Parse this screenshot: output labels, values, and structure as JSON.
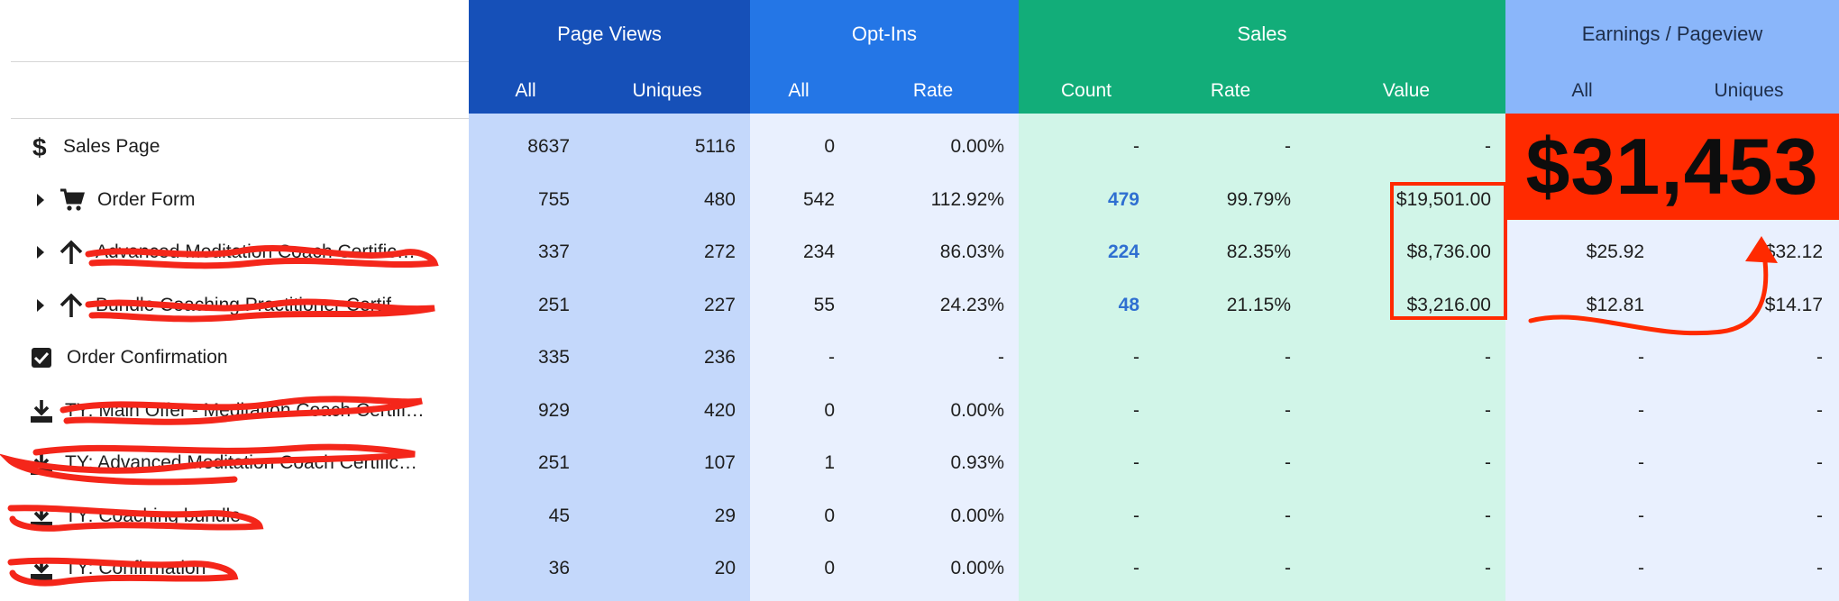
{
  "header": {
    "groups": [
      {
        "label": "Page Views"
      },
      {
        "label": "Opt-Ins"
      },
      {
        "label": "Sales"
      },
      {
        "label": "Earnings / Pageview"
      }
    ],
    "subheaders": {
      "pv_all": "All",
      "pv_uniques": "Uniques",
      "opt_all": "All",
      "opt_rate": "Rate",
      "sales_count": "Count",
      "sales_rate": "Rate",
      "sales_value": "Value",
      "epv_all": "All",
      "epv_uniques": "Uniques"
    }
  },
  "rows": [
    {
      "icon": "dollar-icon",
      "label": "Sales Page",
      "pv_all": "8637",
      "pv_uniques": "5116",
      "opt_all": "0",
      "opt_rate": "0.00%",
      "sales_count": "-",
      "sales_rate": "-",
      "sales_value": "-",
      "epv_all": "",
      "epv_uniques": ""
    },
    {
      "icon": "cart-icon",
      "label": "Order Form",
      "pv_all": "755",
      "pv_uniques": "480",
      "opt_all": "542",
      "opt_rate": "112.92%",
      "sales_count": "479",
      "sales_rate": "99.79%",
      "sales_value": "$19,501.00",
      "epv_all": "",
      "epv_uniques": ""
    },
    {
      "icon": "arrow-up-icon",
      "label": "Advanced Meditation Coach Certific…",
      "pv_all": "337",
      "pv_uniques": "272",
      "opt_all": "234",
      "opt_rate": "86.03%",
      "sales_count": "224",
      "sales_rate": "82.35%",
      "sales_value": "$8,736.00",
      "epv_all": "$25.92",
      "epv_uniques": "$32.12"
    },
    {
      "icon": "arrow-up-icon",
      "label": "Bundle Coaching Practitioner Certif…",
      "pv_all": "251",
      "pv_uniques": "227",
      "opt_all": "55",
      "opt_rate": "24.23%",
      "sales_count": "48",
      "sales_rate": "21.15%",
      "sales_value": "$3,216.00",
      "epv_all": "$12.81",
      "epv_uniques": "$14.17"
    },
    {
      "icon": "checkbox-icon",
      "label": "Order Confirmation",
      "pv_all": "335",
      "pv_uniques": "236",
      "opt_all": "-",
      "opt_rate": "-",
      "sales_count": "-",
      "sales_rate": "-",
      "sales_value": "-",
      "epv_all": "-",
      "epv_uniques": "-"
    },
    {
      "icon": "download-icon",
      "label": "TY: Main Offer - Meditation Coach Certifi…",
      "pv_all": "929",
      "pv_uniques": "420",
      "opt_all": "0",
      "opt_rate": "0.00%",
      "sales_count": "-",
      "sales_rate": "-",
      "sales_value": "-",
      "epv_all": "-",
      "epv_uniques": "-"
    },
    {
      "icon": "download-icon",
      "label": "TY: Advanced Meditation Coach Certifica…",
      "pv_all": "251",
      "pv_uniques": "107",
      "opt_all": "1",
      "opt_rate": "0.93%",
      "sales_count": "-",
      "sales_rate": "-",
      "sales_value": "-",
      "epv_all": "-",
      "epv_uniques": "-"
    },
    {
      "icon": "download-icon",
      "label": "TY: Coaching bundle",
      "pv_all": "45",
      "pv_uniques": "29",
      "opt_all": "0",
      "opt_rate": "0.00%",
      "sales_count": "-",
      "sales_rate": "-",
      "sales_value": "-",
      "epv_all": "-",
      "epv_uniques": "-"
    },
    {
      "icon": "download-icon",
      "label": "TY: Confirmation",
      "pv_all": "36",
      "pv_uniques": "20",
      "opt_all": "0",
      "opt_rate": "0.00%",
      "sales_count": "-",
      "sales_rate": "-",
      "sales_value": "-",
      "epv_all": "-",
      "epv_uniques": "-"
    }
  ],
  "annotation": {
    "total_label": "$31,453",
    "highlight_color": "#ff2a00"
  },
  "colors": {
    "pv_header": "#1650b8",
    "pv_bg": "#c4d8fb",
    "opt_header": "#2476e6",
    "opt_bg": "#e9f0fe",
    "sales_header": "#12ad79",
    "sales_bg": "#d1f5e8",
    "epv_header": "#8ab6fa",
    "epv_bg": "#e9f0fe"
  }
}
